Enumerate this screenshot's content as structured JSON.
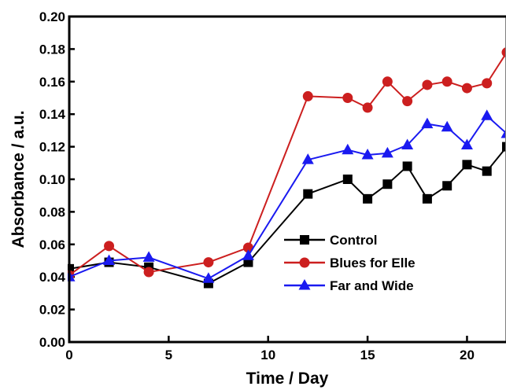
{
  "chart_data": {
    "type": "line",
    "title": "",
    "xlabel": "Time / Day",
    "ylabel": "Absorbance / a.u.",
    "xlim": [
      0,
      22
    ],
    "ylim": [
      0,
      0.2
    ],
    "x_ticks": [
      0,
      5,
      10,
      15,
      20
    ],
    "x_tick_labels": [
      "0",
      "5",
      "10",
      "15",
      "20"
    ],
    "y_ticks": [
      0,
      0.02,
      0.04,
      0.06,
      0.08,
      0.1,
      0.12,
      0.14,
      0.16,
      0.18,
      0.2
    ],
    "y_tick_labels": [
      "0.00",
      "0.02",
      "0.04",
      "0.06",
      "0.08",
      "0.10",
      "0.12",
      "0.14",
      "0.16",
      "0.18",
      "0.20"
    ],
    "grid": false,
    "legend_position": "lower-right",
    "series": [
      {
        "name": "Control",
        "color": "#000000",
        "marker": "square",
        "x": [
          0,
          2,
          4,
          7,
          9,
          12,
          14,
          15,
          16,
          17,
          18,
          19,
          20,
          21,
          22
        ],
        "y": [
          0.045,
          0.049,
          0.046,
          0.036,
          0.049,
          0.091,
          0.1,
          0.088,
          0.097,
          0.108,
          0.088,
          0.096,
          0.109,
          0.105,
          0.12
        ]
      },
      {
        "name": "Blues for Elle",
        "color": "#cc1f1f",
        "marker": "circle",
        "x": [
          0,
          2,
          4,
          7,
          9,
          12,
          14,
          15,
          16,
          17,
          18,
          19,
          20,
          21,
          22
        ],
        "y": [
          0.041,
          0.059,
          0.043,
          0.049,
          0.058,
          0.151,
          0.15,
          0.144,
          0.16,
          0.148,
          0.158,
          0.16,
          0.156,
          0.159,
          0.178
        ]
      },
      {
        "name": "Far and Wide",
        "color": "#1a1af0",
        "marker": "triangle",
        "x": [
          0,
          2,
          4,
          7,
          9,
          12,
          14,
          15,
          16,
          17,
          18,
          19,
          20,
          21,
          22
        ],
        "y": [
          0.04,
          0.05,
          0.052,
          0.039,
          0.053,
          0.112,
          0.118,
          0.115,
          0.116,
          0.121,
          0.134,
          0.132,
          0.121,
          0.139,
          0.128
        ]
      }
    ]
  }
}
